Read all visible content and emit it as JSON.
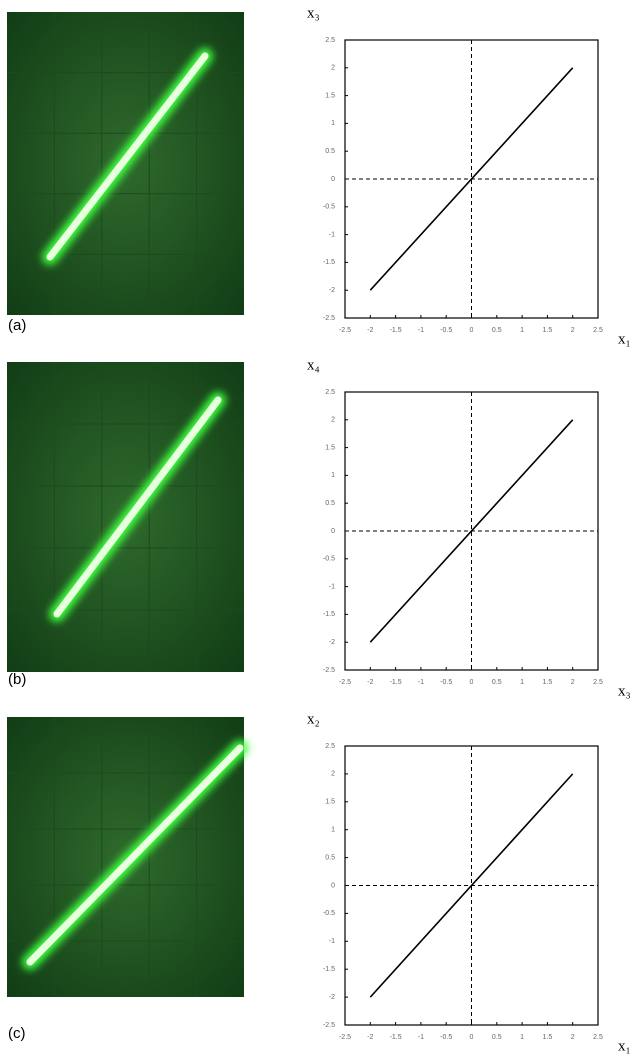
{
  "chart_data": [
    {
      "type": "line",
      "panel_label": "(a)",
      "x_label": "x₁",
      "y_label": "x₃",
      "x": [
        -2,
        2
      ],
      "series": [
        {
          "values": [
            -2,
            2
          ],
          "color": "#000000"
        }
      ],
      "xlim": [
        -2.5,
        2.5
      ],
      "ylim": [
        -2.5,
        2.5
      ],
      "xticks": [
        -2.5,
        -2,
        -1.5,
        -1,
        -0.5,
        0,
        0.5,
        1,
        1.5,
        2,
        2.5
      ],
      "yticks": [
        -2.5,
        -2,
        -1.5,
        -1,
        -0.5,
        0,
        0.5,
        1,
        1.5,
        2,
        2.5
      ]
    },
    {
      "type": "line",
      "panel_label": "(b)",
      "x_label": "x₃",
      "y_label": "x₄",
      "x": [
        -2,
        2
      ],
      "series": [
        {
          "values": [
            -2,
            2
          ],
          "color": "#000000"
        }
      ],
      "xlim": [
        -2.5,
        2.5
      ],
      "ylim": [
        -2.5,
        2.5
      ],
      "xticks": [
        -2.5,
        -2,
        -1.5,
        -1,
        -0.5,
        0,
        0.5,
        1,
        1.5,
        2,
        2.5
      ],
      "yticks": [
        -2.5,
        -2,
        -1.5,
        -1,
        -0.5,
        0,
        0.5,
        1,
        1.5,
        2,
        2.5
      ]
    },
    {
      "type": "line",
      "panel_label": "(c)",
      "x_label": "x₁",
      "y_label": "x₂",
      "x": [
        -2,
        2
      ],
      "series": [
        {
          "values": [
            -2,
            2
          ],
          "color": "#000000"
        }
      ],
      "xlim": [
        -2.5,
        2.5
      ],
      "ylim": [
        -2.5,
        2.5
      ],
      "xticks": [
        -2.5,
        -2,
        -1.5,
        -1,
        -0.5,
        0,
        0.5,
        1,
        1.5,
        2,
        2.5
      ],
      "yticks": [
        -2.5,
        -2,
        -1.5,
        -1,
        -0.5,
        0,
        0.5,
        1,
        1.5,
        2,
        2.5
      ]
    }
  ]
}
